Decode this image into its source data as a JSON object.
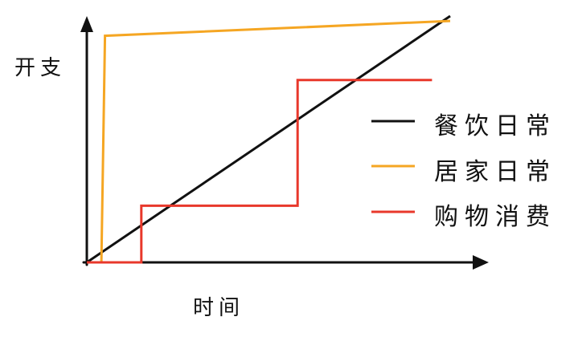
{
  "diagram": {
    "ylabel": "开支",
    "xlabel": "时间",
    "series": [
      {
        "name": "餐饮日常",
        "color": "#111111",
        "kind": "linear",
        "points": [
          [
            0,
            0
          ],
          [
            100,
            100
          ]
        ]
      },
      {
        "name": "居家日常",
        "color": "#f5a623",
        "kind": "jump-then-slow-rise",
        "points": [
          [
            0,
            0
          ],
          [
            4,
            0
          ],
          [
            5,
            92
          ],
          [
            100,
            98
          ]
        ]
      },
      {
        "name": "购物消费",
        "color": "#e8382b",
        "kind": "steps",
        "points": [
          [
            0,
            0
          ],
          [
            15,
            0
          ],
          [
            15,
            23
          ],
          [
            58,
            23
          ],
          [
            58,
            74
          ],
          [
            95,
            74
          ]
        ]
      }
    ]
  }
}
